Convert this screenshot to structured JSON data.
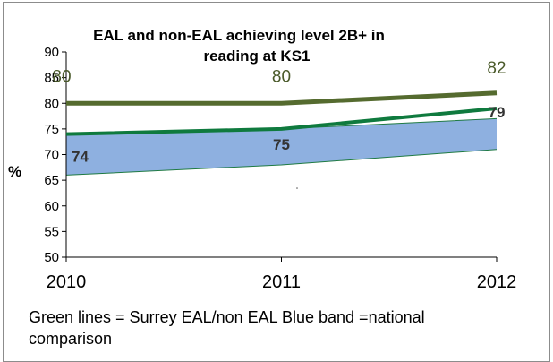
{
  "chart_data": {
    "type": "line",
    "title": "EAL and non-EAL achieving level 2B+ in reading at KS1",
    "title_lines": [
      "EAL and non-EAL achieving level 2B+ in",
      "reading at KS1"
    ],
    "xlabel": "",
    "ylabel": "%",
    "categories": [
      "2010",
      "2011",
      "2012"
    ],
    "ylim": [
      50,
      90
    ],
    "yticks": [
      "50",
      "55",
      "60",
      "65",
      "70",
      "75",
      "80",
      "85",
      "90"
    ],
    "grid": false,
    "series": [
      {
        "values": [
          80,
          80,
          82
        ],
        "labels": [
          "80",
          "80",
          "82"
        ],
        "color": "#556b2f"
      },
      {
        "values": [
          74,
          75,
          79
        ],
        "labels": [
          "74",
          "75",
          "79"
        ],
        "color": "#0f7a3e"
      }
    ],
    "band": {
      "lower": [
        66,
        68,
        71
      ],
      "upper": [
        74,
        75,
        77
      ],
      "color": "#8eb0e0"
    },
    "caption_lines": [
      "Green lines = Surrey EAL/non EAL Blue band  =national",
      "comparison"
    ]
  }
}
